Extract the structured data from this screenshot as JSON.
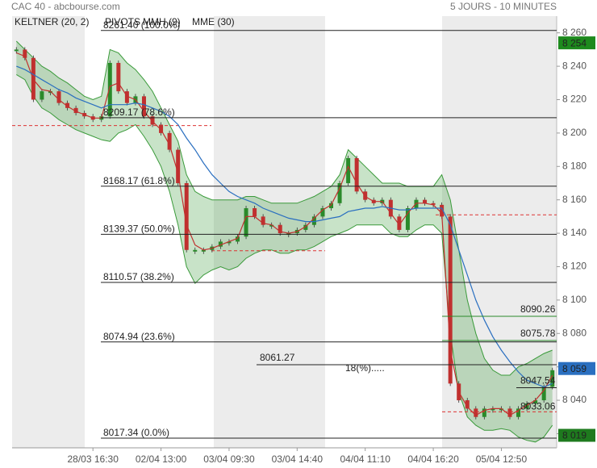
{
  "chart_data": {
    "type": "stock",
    "title": "CAC 40 - abcbourse.com",
    "subtitle": "5 JOURS - 10 MINUTES",
    "categories": [
      null,
      null,
      null,
      null,
      null,
      null,
      null,
      null,
      null,
      "28/03 16:30",
      null,
      null,
      null,
      null,
      null,
      null,
      null,
      "02/04 13:00",
      null,
      null,
      null,
      null,
      null,
      null,
      null,
      "03/04 09:30",
      null,
      null,
      null,
      null,
      null,
      null,
      null,
      "03/04 14:40",
      null,
      null,
      null,
      null,
      null,
      null,
      null,
      "04/04 11:10",
      null,
      null,
      null,
      null,
      null,
      null,
      null,
      "04/04 16:20",
      null,
      null,
      null,
      null,
      null,
      null,
      null,
      "05/04 12:50",
      null,
      null,
      null,
      null,
      null,
      null
    ],
    "values": [
      8250,
      8245,
      8220,
      8225,
      8225,
      8218,
      8215,
      8212,
      8210,
      8208,
      8210,
      8242,
      8225,
      8218,
      8222,
      8210,
      8205,
      8200,
      8190,
      8170,
      8130,
      8130,
      8130,
      8132,
      8135,
      8135,
      8138,
      8155,
      8150,
      8145,
      8145,
      8140,
      8140,
      8142,
      8145,
      8150,
      8155,
      8158,
      8170,
      8185,
      8165,
      8160,
      8158,
      8160,
      8150,
      8142,
      8155,
      8160,
      8158,
      8157,
      8150,
      8050,
      8040,
      8035,
      8030,
      8035,
      8035,
      8035,
      8030,
      8035,
      8038,
      8040,
      8048,
      8058
    ],
    "up_color": "#2a8a2a",
    "down_color": "#c0302f",
    "band": {
      "name": "KELTNER (20, 2)",
      "color": "#3a9a3a",
      "upper": [
        8255,
        8250,
        8245,
        8240,
        8237,
        8233,
        8230,
        8226,
        8222,
        8220,
        8222,
        8250,
        8248,
        8242,
        8238,
        8232,
        8225,
        8215,
        8205,
        8195,
        8175,
        8165,
        8162,
        8160,
        8160,
        8160,
        8160,
        8162,
        8162,
        8160,
        8158,
        8158,
        8158,
        8158,
        8160,
        8162,
        8165,
        8168,
        8175,
        8190,
        8185,
        8180,
        8175,
        8170,
        8170,
        8170,
        8168,
        8168,
        8168,
        8168,
        8175,
        8160,
        8130,
        8100,
        8080,
        8065,
        8058,
        8055,
        8055,
        8060,
        8062,
        8065,
        8068,
        8070
      ],
      "lower": [
        8235,
        8232,
        8222,
        8215,
        8212,
        8208,
        8205,
        8202,
        8200,
        8198,
        8196,
        8195,
        8200,
        8202,
        8205,
        8198,
        8190,
        8180,
        8165,
        8145,
        8120,
        8110,
        8115,
        8118,
        8120,
        8118,
        8120,
        8125,
        8128,
        8130,
        8130,
        8128,
        8128,
        8130,
        8130,
        8132,
        8135,
        8138,
        8140,
        8142,
        8145,
        8145,
        8145,
        8145,
        8140,
        8138,
        8138,
        8142,
        8145,
        8145,
        8140,
        8080,
        8045,
        8030,
        8025,
        8022,
        8022,
        8023,
        8022,
        8018,
        8016,
        8015,
        8018,
        8025
      ]
    },
    "pivots": {
      "name": "PIVOTS",
      "color": "#d33",
      "values": [
        8204.5,
        8129.5,
        8151
      ]
    },
    "series": [
      {
        "name": "MMH (9)",
        "color": "#c0302f",
        "values": [
          8248,
          8246,
          8232,
          8226,
          8225,
          8220,
          8216,
          8213,
          8211,
          8209,
          8209,
          8228,
          8230,
          8222,
          8220,
          8213,
          8207,
          8202,
          8193,
          8176,
          8145,
          8133,
          8130,
          8131,
          8133,
          8135,
          8137,
          8150,
          8150,
          8146,
          8145,
          8141,
          8140,
          8141,
          8144,
          8149,
          8154,
          8157,
          8167,
          8180,
          8170,
          8162,
          8159,
          8159,
          8152,
          8145,
          8152,
          8158,
          8158,
          8157,
          8152,
          8070,
          8045,
          8036,
          8031,
          8034,
          8035,
          8035,
          8031,
          8034,
          8037,
          8040,
          8046,
          8055
        ]
      },
      {
        "name": "MME (30)",
        "color": "#2a6fc0",
        "values": [
          8240,
          8238,
          8235,
          8232,
          8229,
          8226,
          8224,
          8221,
          8219,
          8217,
          8215,
          8217,
          8217,
          8217,
          8218,
          8217,
          8215,
          8213,
          8210,
          8205,
          8197,
          8190,
          8182,
          8175,
          8170,
          8165,
          8162,
          8160,
          8158,
          8155,
          8153,
          8151,
          8149,
          8148,
          8147,
          8147,
          8148,
          8149,
          8150,
          8153,
          8154,
          8155,
          8155,
          8156,
          8155,
          8154,
          8154,
          8155,
          8155,
          8155,
          8155,
          8145,
          8130,
          8115,
          8100,
          8088,
          8078,
          8070,
          8063,
          8057,
          8052,
          8050,
          8048,
          8050
        ]
      }
    ],
    "levels": [
      {
        "value": 8261.4,
        "label": "8261.40  (100.0%)",
        "color": "#222"
      },
      {
        "value": 8209.17,
        "label": "8209.17  (78.6%)",
        "color": "#222"
      },
      {
        "value": 8168.17,
        "label": "8168.17  (61.8%)",
        "color": "#222"
      },
      {
        "value": 8139.37,
        "label": "8139.37  (50.0%)",
        "color": "#222"
      },
      {
        "value": 8110.57,
        "label": "8110.57  (38.2%)",
        "color": "#222"
      },
      {
        "value": 8074.94,
        "label": "8074.94  (23.6%)",
        "color": "#222"
      },
      {
        "value": 8017.34,
        "label": "8017.34  (0.0%)",
        "color": "#222"
      },
      {
        "value": 8090.26,
        "label": "8090.26",
        "color": "#2a8a2a"
      },
      {
        "value": 8075.78,
        "label": "8075.78",
        "color": "#2a8a2a"
      },
      {
        "value": 8061.27,
        "label": "8061.27",
        "color": "#222"
      },
      {
        "value": 8047.54,
        "label": "8047.54",
        "color": "#222"
      },
      {
        "value": 8033.06,
        "label": "8033.06",
        "color": "#d33"
      }
    ],
    "annotation": "18(%).....",
    "price_badges": [
      {
        "value": 8254,
        "label": "8 254",
        "color": "#1e8a1e"
      },
      {
        "value": 8059,
        "label": "8 059",
        "color": "#2a6fc0"
      },
      {
        "value": 8019,
        "label": "8 019",
        "color": "#1e7a1e"
      }
    ],
    "ylim": [
      8012,
      8270
    ],
    "yticks": [
      {
        "value": 8020,
        "label": "8 020"
      },
      {
        "value": 8040,
        "label": "8 040"
      },
      {
        "value": 8060,
        "label": "8 060"
      },
      {
        "value": 8080,
        "label": "8 080"
      },
      {
        "value": 8100,
        "label": "8 100"
      },
      {
        "value": 8120,
        "label": "8 120"
      },
      {
        "value": 8140,
        "label": "8 140"
      },
      {
        "value": 8160,
        "label": "8 160"
      },
      {
        "value": 8180,
        "label": "8 180"
      },
      {
        "value": 8200,
        "label": "8 200"
      },
      {
        "value": 8220,
        "label": "8 220"
      },
      {
        "value": 8240,
        "label": "8 240"
      },
      {
        "value": 8260,
        "label": "8 260"
      }
    ]
  }
}
